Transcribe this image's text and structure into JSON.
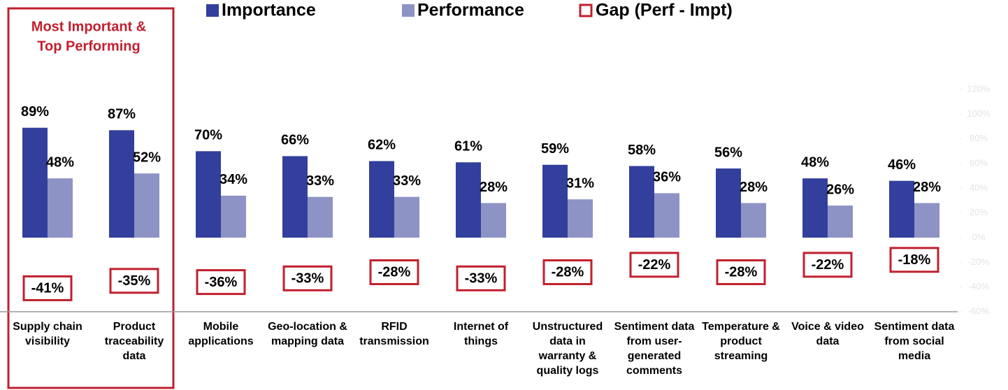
{
  "chart_data": {
    "type": "bar",
    "categories": [
      "Supply chain visibility",
      "Product traceability data",
      "Mobile applications",
      "Geo-location & mapping data",
      "RFID transmission",
      "Internet of things",
      "Unstructured data in warranty & quality logs",
      "Sentiment data from user-generated comments",
      "Temperature & product streaming",
      "Voice & video data",
      "Sentiment data from social media"
    ],
    "series": [
      {
        "name": "Importance",
        "color": "#333f9c",
        "mark": "bar",
        "values": [
          89,
          87,
          70,
          66,
          62,
          61,
          59,
          58,
          56,
          48,
          46
        ],
        "value_labels": [
          "89%",
          "87%",
          "70%",
          "66%",
          "62%",
          "61%",
          "59%",
          "58%",
          "56%",
          "48%",
          "46%"
        ]
      },
      {
        "name": "Performance",
        "color": "#8d93c4",
        "mark": "bar",
        "values": [
          48,
          52,
          34,
          33,
          33,
          28,
          31,
          36,
          28,
          26,
          28
        ],
        "value_labels": [
          "48%",
          "52%",
          "34%",
          "33%",
          "33%",
          "28%",
          "31%",
          "36%",
          "28%",
          "26%",
          "28%"
        ]
      },
      {
        "name": "Gap (Perf - Impt)",
        "color": "#c0202f",
        "mark": "box",
        "values": [
          -41,
          -35,
          -36,
          -33,
          -28,
          -33,
          -28,
          -22,
          -28,
          -22,
          -18
        ],
        "value_labels": [
          "-41%",
          "-35%",
          "-36%",
          "-33%",
          "-28%",
          "-33%",
          "-28%",
          "-22%",
          "-28%",
          "-22%",
          "-18%"
        ]
      }
    ],
    "ylim": [
      -60,
      120
    ],
    "yticks": [
      {
        "value": -60,
        "label": "-60%"
      },
      {
        "value": -40,
        "label": "-40%"
      },
      {
        "value": -20,
        "label": "-20%"
      },
      {
        "value": 0,
        "label": "0%"
      },
      {
        "value": 20,
        "label": "20%"
      },
      {
        "value": 40,
        "label": "40%"
      },
      {
        "value": 60,
        "label": "60%"
      },
      {
        "value": 80,
        "label": "80%"
      },
      {
        "value": 100,
        "label": "100%"
      },
      {
        "value": 120,
        "label": "120%"
      }
    ],
    "annotation": {
      "lines": [
        "Most Important &",
        "Top Performing"
      ],
      "color": "#c0202f"
    }
  }
}
